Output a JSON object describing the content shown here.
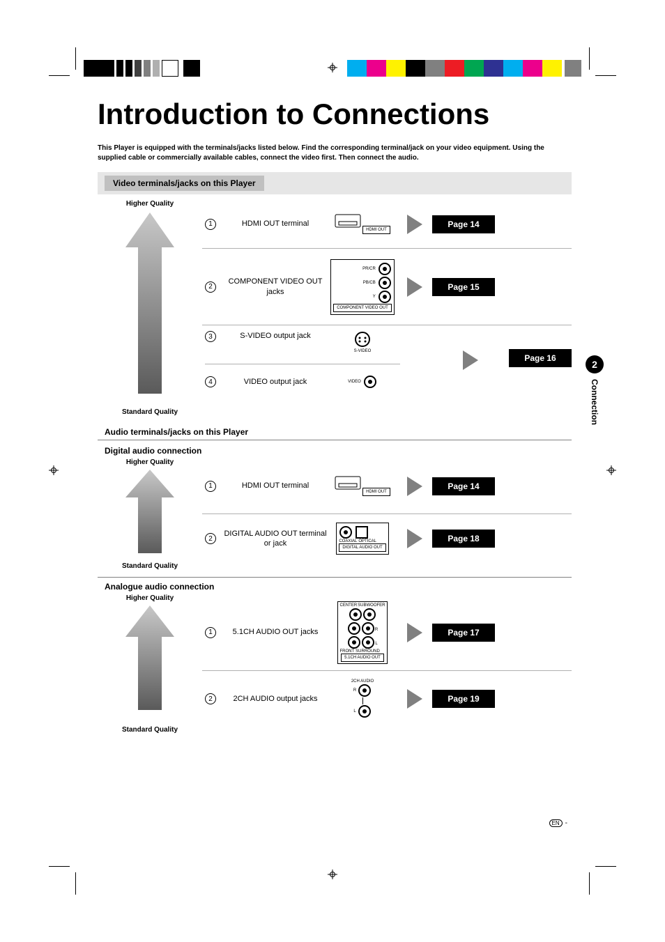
{
  "print_marks": {
    "color_bar_colors": [
      "#00aeef",
      "#ec008c",
      "#fff200",
      "#000000",
      "#808080",
      "#ed1c24",
      "#00a651",
      "#2e3192",
      "#00aeef",
      "#ec008c",
      "#fff200",
      "#808080"
    ]
  },
  "title": "Introduction to Connections",
  "intro": "This Player is equipped with the terminals/jacks listed below. Find the corresponding terminal/jack on your video equipment.  Using the supplied cable or commercially available cables, connect the video first. Then connect the audio.",
  "side_tab": {
    "number": "2",
    "label": "Connection"
  },
  "labels": {
    "higher": "Higher Quality",
    "standard": "Standard Quality"
  },
  "video_section": {
    "heading": "Video terminals/jacks on this Player",
    "rows": [
      {
        "n": "1",
        "name": "HDMI OUT terminal",
        "page": "Page 14",
        "icon": "hdmi",
        "icon_label": "HDMI OUT"
      },
      {
        "n": "2",
        "name": "COMPONENT VIDEO OUT jacks",
        "page": "Page 15",
        "icon": "component",
        "icon_label": "COMPONENT VIDEO OUT"
      },
      {
        "n": "3",
        "name": "S-VIDEO output jack",
        "page": "Page 16",
        "icon": "svideo",
        "icon_label": "S-VIDEO",
        "page_shared_with_next": true
      },
      {
        "n": "4",
        "name": "VIDEO output jack",
        "page": "Page 16",
        "icon": "video",
        "icon_label": "VIDEO"
      }
    ]
  },
  "audio_section_heading": "Audio terminals/jacks on this Player",
  "digital_audio": {
    "subheading": "Digital audio connection",
    "rows": [
      {
        "n": "1",
        "name": "HDMI OUT terminal",
        "page": "Page 14",
        "icon": "hdmi",
        "icon_label": "HDMI OUT"
      },
      {
        "n": "2",
        "name": "DIGITAL AUDIO OUT terminal or jack",
        "page": "Page 18",
        "icon": "digital-audio",
        "icon_label": "DIGITAL AUDIO OUT",
        "sub_labels": [
          "COAXIAL",
          "OPTICAL"
        ]
      }
    ]
  },
  "analogue_audio": {
    "subheading": "Analogue audio connection",
    "rows": [
      {
        "n": "1",
        "name": "5.1CH AUDIO OUT jacks",
        "page": "Page 17",
        "icon": "51ch",
        "icon_label": "5.1CH AUDIO OUT",
        "sub_labels": [
          "CENTER",
          "SUBWOOFER",
          "FRONT",
          "SURROUND"
        ]
      },
      {
        "n": "2",
        "name": "2CH AUDIO output jacks",
        "page": "Page 19",
        "icon": "2ch",
        "icon_label": "2CH AUDIO",
        "sub_labels": [
          "R",
          "L"
        ]
      }
    ]
  },
  "footer": {
    "lang": "EN",
    "dash": "-"
  },
  "arrow_gradient": {
    "top": "#c8c8c8",
    "bottom": "#5a5a5a"
  }
}
